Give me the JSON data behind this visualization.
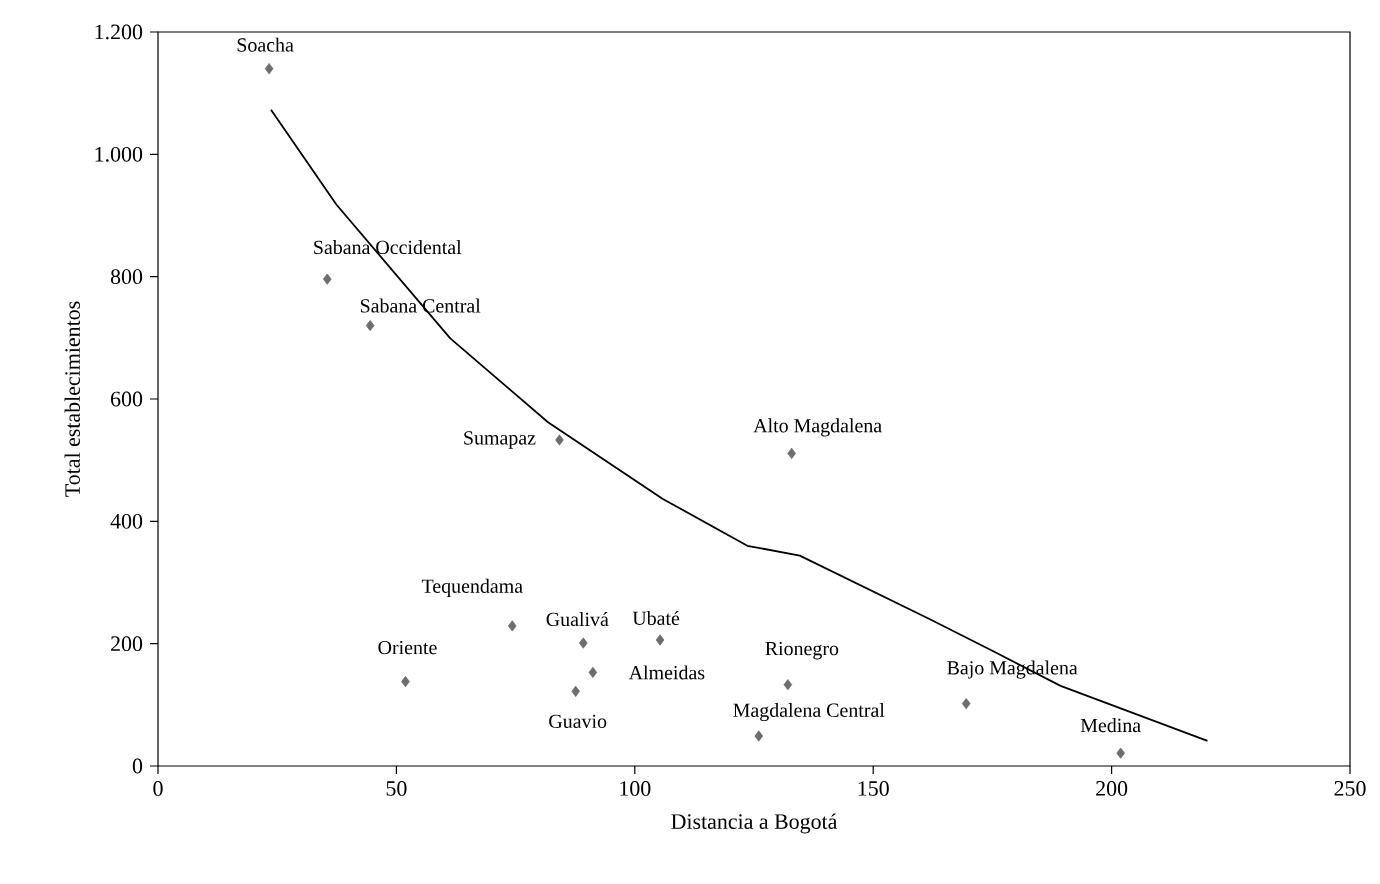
{
  "chart_data": {
    "type": "scatter",
    "xlabel": "Distancia a Bogotá",
    "ylabel": "Total establecimientos",
    "xlim": [
      0,
      250
    ],
    "xticks": [
      0,
      50,
      100,
      150,
      200,
      250
    ],
    "ylim": [
      0,
      1200
    ],
    "yticks": [
      0,
      200,
      400,
      600,
      800,
      {
        "value": 1000,
        "label": "1.000"
      },
      {
        "value": 1200,
        "label": "1.200"
      }
    ],
    "series": [
      {
        "marker": "diamond",
        "color": "#6d6d6d",
        "x": [
          23.3,
          35.5,
          44.5,
          84.2,
          132.9,
          74.3,
          89.2,
          105.3,
          51.9,
          91.2,
          87.6,
          132.1,
          126,
          169.5,
          201.9
        ],
        "values": [
          1140,
          796,
          720,
          533,
          511,
          229,
          201,
          206,
          138,
          153,
          122,
          133,
          49,
          102,
          21
        ]
      },
      {
        "type": "line",
        "marker": "none",
        "color": "#000000",
        "x": [
          23.7,
          37.4,
          61.3,
          81.8,
          105.8,
          123.6,
          134.6,
          161.9,
          175.6,
          189.3,
          220.1
        ],
        "values": [
          1073,
          918,
          699,
          562,
          437,
          360,
          344,
          240,
          186,
          131,
          41
        ]
      }
    ],
    "annotations": [
      {
        "text": "Soacha",
        "x": 23.3,
        "y": 1140
      },
      {
        "text": "Sabana Occidental",
        "x": 35.5,
        "y": 796
      },
      {
        "text": "Sabana Central",
        "x": 44.5,
        "y": 720
      },
      {
        "text": "Sumapaz",
        "x": 84.2,
        "y": 533
      },
      {
        "text": "Alto Magdalena",
        "x": 132.9,
        "y": 511
      },
      {
        "text": "Tequendama",
        "x": 74.3,
        "y": 229
      },
      {
        "text": "Gualivá",
        "x": 89.2,
        "y": 201
      },
      {
        "text": "Ubaté",
        "x": 105.3,
        "y": 206
      },
      {
        "text": "Oriente",
        "x": 51.9,
        "y": 138
      },
      {
        "text": "Almeidas",
        "x": 91.2,
        "y": 153
      },
      {
        "text": "Guavio",
        "x": 87.6,
        "y": 122
      },
      {
        "text": "Rionegro",
        "x": 132.1,
        "y": 133
      },
      {
        "text": "Magdalena Central",
        "x": 126,
        "y": 49
      },
      {
        "text": "Bajo Magdalena",
        "x": 169.5,
        "y": 102
      },
      {
        "text": "Medina",
        "x": 201.9,
        "y": 21
      }
    ]
  }
}
